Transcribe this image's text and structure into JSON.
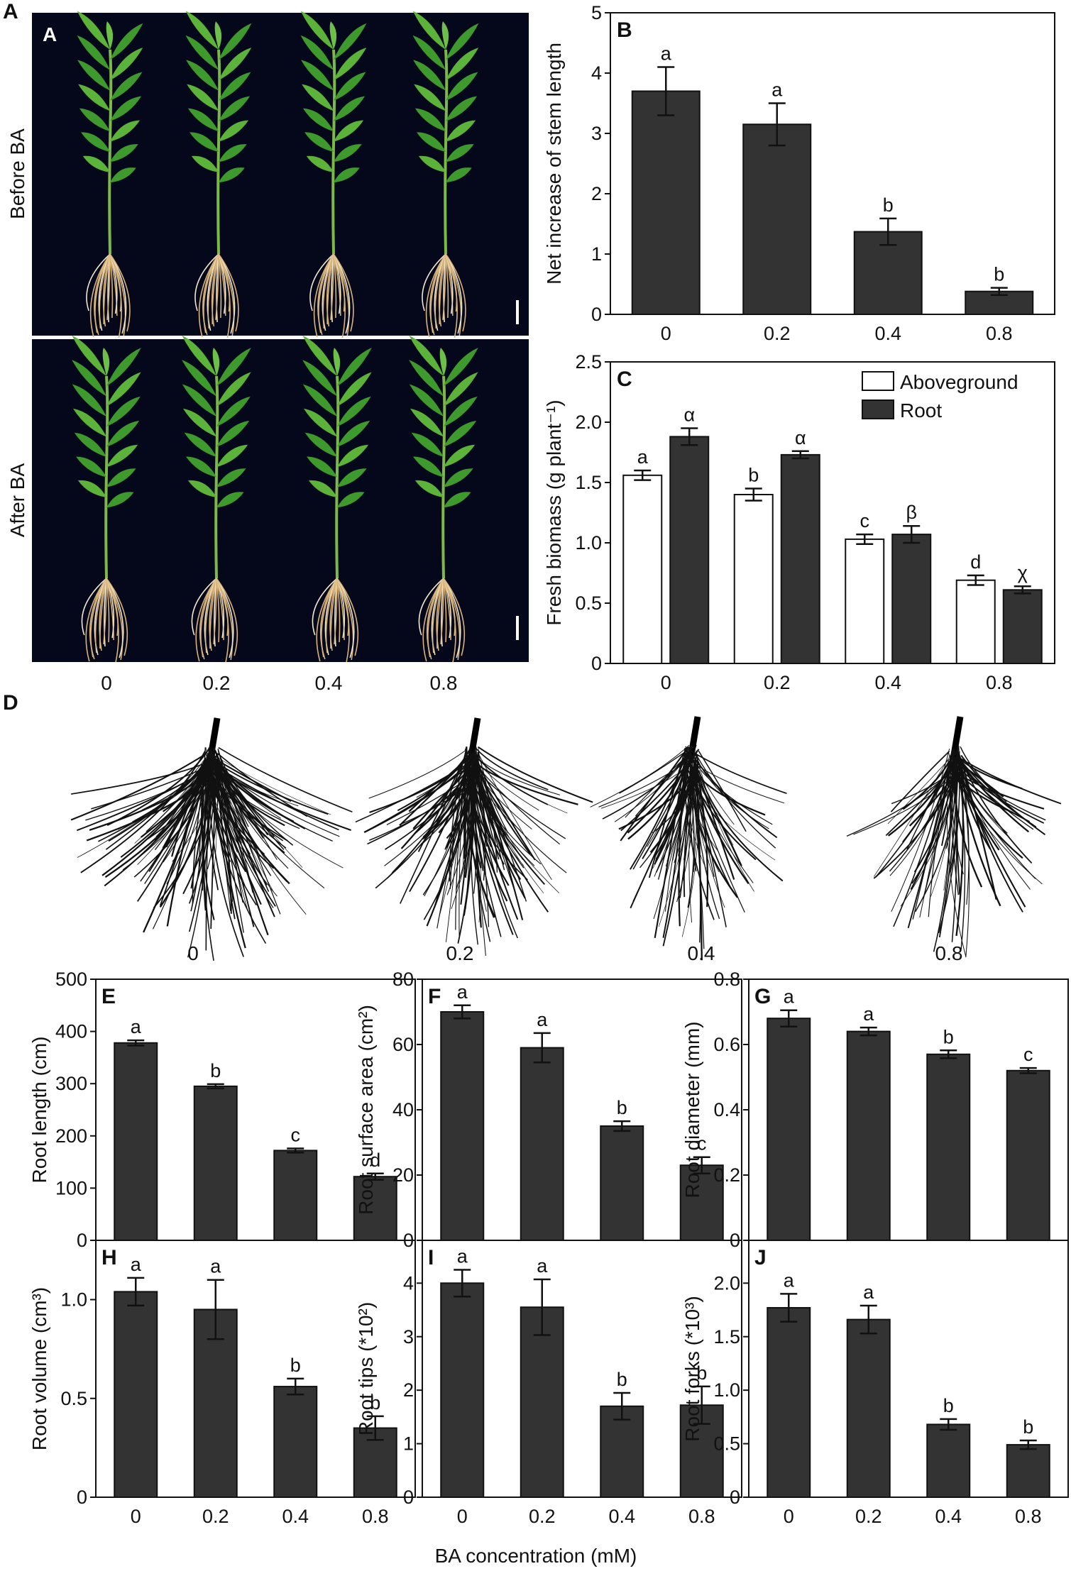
{
  "figure": {
    "letter_A": "A",
    "letter_D": "D",
    "photo_top_label": "Before BA",
    "photo_bottom_label": "After BA",
    "photo_inner_label": "A",
    "photo_conc_labels": [
      "0",
      "0.2",
      "0.4",
      "0.8"
    ],
    "root_scan_labels": [
      "0",
      "0.2",
      "0.4",
      "0.8"
    ],
    "shared_xlabel": "BA concentration (mM)",
    "colors": {
      "bar_dark": "#333333",
      "bar_white": "#ffffff",
      "photo_bg": "#05081a",
      "leaf": "#3e9a2c",
      "root": "#d9b47a"
    }
  },
  "chart_data": [
    {
      "id": "B",
      "panel_letter": "B",
      "type": "bar",
      "categories": [
        "0",
        "0.2",
        "0.4",
        "0.8"
      ],
      "series": [
        {
          "values": [
            3.7,
            3.15,
            1.37,
            0.38
          ],
          "errors": [
            0.4,
            0.35,
            0.22,
            0.06
          ],
          "labels": [
            "a",
            "a",
            "b",
            "b"
          ]
        }
      ],
      "ylabel": "Net increase of stem length",
      "xlabel": "",
      "ylim": [
        0,
        5
      ],
      "yticks": [
        "0",
        "1",
        "2",
        "3",
        "4",
        "5"
      ],
      "grid": false
    },
    {
      "id": "C",
      "panel_letter": "C",
      "type": "bar",
      "categories": [
        "0",
        "0.2",
        "0.4",
        "0.8"
      ],
      "series": [
        {
          "name": "Aboveground",
          "values": [
            1.56,
            1.4,
            1.03,
            0.69
          ],
          "errors": [
            0.04,
            0.05,
            0.04,
            0.04
          ],
          "labels": [
            "a",
            "b",
            "c",
            "d"
          ]
        },
        {
          "name": "Root",
          "values": [
            1.88,
            1.73,
            1.07,
            0.61
          ],
          "errors": [
            0.07,
            0.03,
            0.07,
            0.03
          ],
          "labels": [
            "α",
            "α",
            "β",
            "χ"
          ]
        }
      ],
      "ylabel": "Fresh biomass (g plant⁻¹)",
      "xlabel": "",
      "ylim": [
        0,
        2.5
      ],
      "yticks": [
        "0",
        "0.5",
        "1.0",
        "1.5",
        "2.0",
        "2.5"
      ],
      "legend": "top-right",
      "grid": false
    },
    {
      "id": "E",
      "panel_letter": "E",
      "type": "bar",
      "categories": [
        "0",
        "0.2",
        "0.4",
        "0.8"
      ],
      "series": [
        {
          "values": [
            378,
            295,
            172,
            122
          ],
          "errors": [
            5,
            4,
            4,
            6
          ],
          "labels": [
            "a",
            "b",
            "c",
            "d"
          ]
        }
      ],
      "ylabel": "Root length (cm)",
      "xlabel": "",
      "ylim": [
        0,
        500
      ],
      "yticks": [
        "0",
        "100",
        "200",
        "300",
        "400",
        "500"
      ],
      "grid": false
    },
    {
      "id": "F",
      "panel_letter": "F",
      "type": "bar",
      "categories": [
        "0",
        "0.2",
        "0.4",
        "0.8"
      ],
      "series": [
        {
          "values": [
            70,
            59,
            35,
            23
          ],
          "errors": [
            2,
            4.5,
            1.5,
            2.5
          ],
          "labels": [
            "a",
            "a",
            "b",
            "c"
          ]
        }
      ],
      "ylabel": "Root surface area (cm²)",
      "xlabel": "",
      "ylim": [
        0,
        80
      ],
      "yticks": [
        "0",
        "20",
        "40",
        "60",
        "80"
      ],
      "grid": false
    },
    {
      "id": "G",
      "panel_letter": "G",
      "type": "bar",
      "categories": [
        "0",
        "0.2",
        "0.4",
        "0.8"
      ],
      "series": [
        {
          "values": [
            0.68,
            0.64,
            0.57,
            0.52
          ],
          "errors": [
            0.025,
            0.012,
            0.012,
            0.008
          ],
          "labels": [
            "a",
            "a",
            "b",
            "c"
          ]
        }
      ],
      "ylabel": "Root diameter (mm)",
      "xlabel": "",
      "ylim": [
        0,
        0.8
      ],
      "yticks": [
        "0",
        "0.2",
        "0.4",
        "0.6",
        "0.8"
      ],
      "grid": false
    },
    {
      "id": "H",
      "panel_letter": "H",
      "type": "bar",
      "categories": [
        "0",
        "0.2",
        "0.4",
        "0.8"
      ],
      "series": [
        {
          "values": [
            1.04,
            0.95,
            0.56,
            0.35
          ],
          "errors": [
            0.07,
            0.15,
            0.04,
            0.06
          ],
          "labels": [
            "a",
            "a",
            "b",
            "b"
          ]
        }
      ],
      "ylabel": "Root volume (cm³)",
      "xlabel": "",
      "ylim": [
        0,
        1.3
      ],
      "yticks": [
        "0",
        "0.5",
        "1.0"
      ],
      "ytick_values": [
        0,
        0.5,
        1.0
      ],
      "grid": false
    },
    {
      "id": "I",
      "panel_letter": "I",
      "type": "bar",
      "categories": [
        "0",
        "0.2",
        "0.4",
        "0.8"
      ],
      "series": [
        {
          "values": [
            4.0,
            3.55,
            1.7,
            1.72
          ],
          "errors": [
            0.25,
            0.52,
            0.25,
            0.35
          ],
          "labels": [
            "a",
            "a",
            "b",
            "b"
          ]
        }
      ],
      "ylabel": "Root tips (*10²)",
      "xlabel": "",
      "ylim": [
        0,
        4.8
      ],
      "yticks": [
        "0",
        "1",
        "2",
        "3",
        "4"
      ],
      "ytick_values": [
        0,
        1,
        2,
        3,
        4
      ],
      "grid": false
    },
    {
      "id": "J",
      "panel_letter": "J",
      "type": "bar",
      "categories": [
        "0",
        "0.2",
        "0.4",
        "0.8"
      ],
      "series": [
        {
          "values": [
            1.77,
            1.66,
            0.68,
            0.49
          ],
          "errors": [
            0.13,
            0.13,
            0.05,
            0.04
          ],
          "labels": [
            "a",
            "a",
            "b",
            "b"
          ]
        }
      ],
      "ylabel": "Root forks (*10³)",
      "xlabel": "",
      "ylim": [
        0,
        2.4
      ],
      "yticks": [
        "0",
        "0.5",
        "1.0",
        "1.5",
        "2.0"
      ],
      "ytick_values": [
        0,
        0.5,
        1.0,
        1.5,
        2.0
      ],
      "grid": false
    }
  ]
}
